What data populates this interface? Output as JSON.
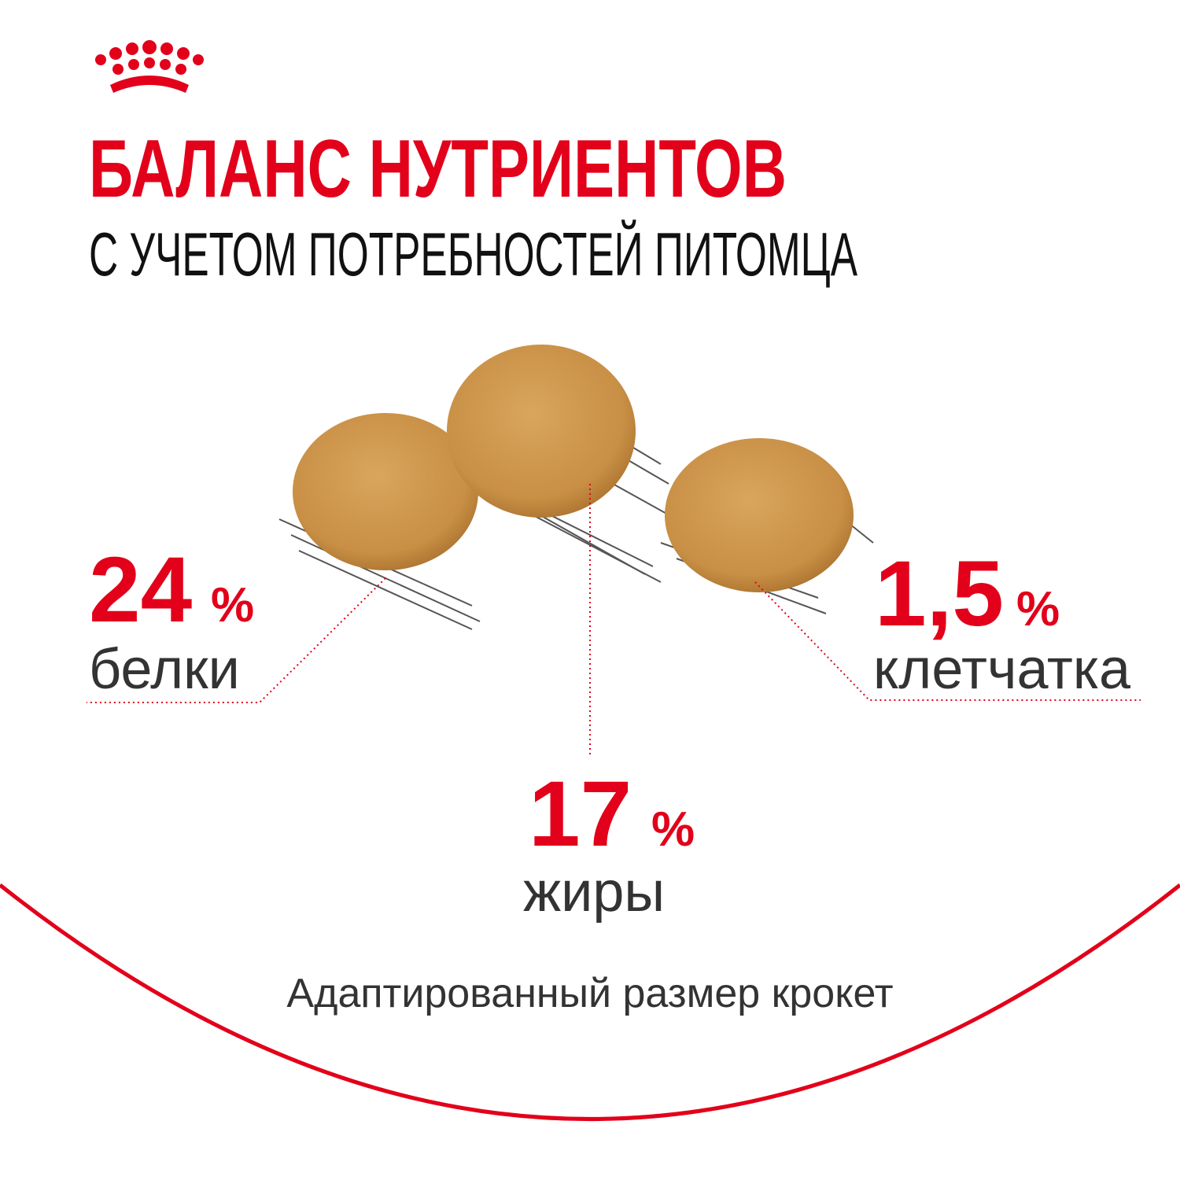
{
  "header": {
    "title": "БАЛАНС НУТРИЕНТОВ",
    "subtitle": "С УЧЕТОМ ПОТРЕБНОСТЕЙ ПИТОМЦА"
  },
  "nutrients": [
    {
      "value": "24",
      "unit": "%",
      "label": "белки"
    },
    {
      "value": "17",
      "unit": "%",
      "label": "жиры"
    },
    {
      "value": "1,5",
      "unit": "%",
      "label": "клетчатка"
    }
  ],
  "footer": "Адаптированный размер крокет"
}
